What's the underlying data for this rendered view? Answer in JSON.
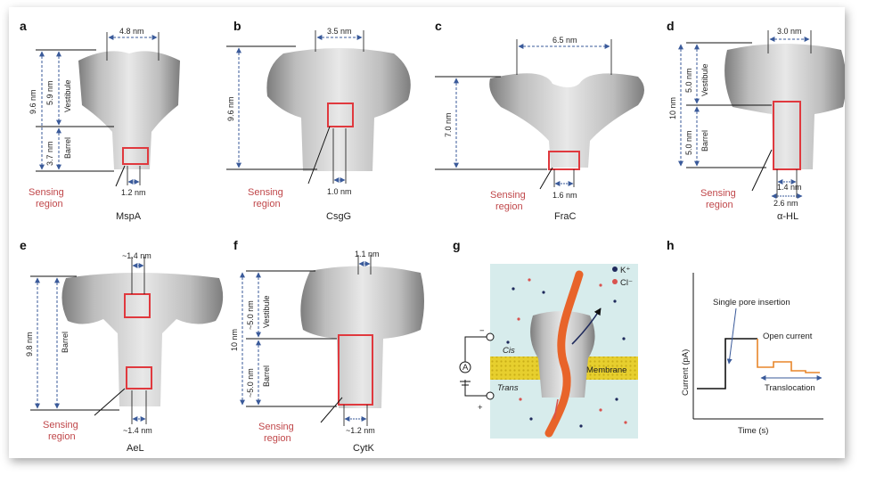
{
  "panels": {
    "a": {
      "letter": "a",
      "name": "MspA",
      "height": "9.6 nm",
      "top_width": "4.8 nm",
      "vestibule_len": "5.9 nm",
      "barrel_len": "3.7 nm",
      "vestibule": "Vestibule",
      "barrel": "Barrel",
      "constriction": "1.2 nm",
      "sensing": [
        "Sensing",
        "region"
      ]
    },
    "b": {
      "letter": "b",
      "name": "CsgG",
      "height": "9.6 nm",
      "top_width": "3.5 nm",
      "constriction": "1.0 nm",
      "sensing": [
        "Sensing",
        "region"
      ]
    },
    "c": {
      "letter": "c",
      "name": "FraC",
      "height": "7.0 nm",
      "top_width": "6.5 nm",
      "constriction": "1.6 nm",
      "sensing": [
        "Sensing",
        "region"
      ]
    },
    "d": {
      "letter": "d",
      "name": "α-HL",
      "height": "10 nm",
      "top_width": "3.0 nm",
      "vestibule_len": "5.0 nm",
      "barrel_len": "5.0 nm",
      "vestibule": "Vestibule",
      "barrel": "Barrel",
      "inner_width": "1.4 nm",
      "outer_width": "2.6 nm",
      "sensing": [
        "Sensing",
        "region"
      ]
    },
    "e": {
      "letter": "e",
      "name": "AeL",
      "height": "9.8 nm",
      "barrel": "Barrel",
      "top_width": "~1.4 nm",
      "bottom_width": "~1.4 nm",
      "sensing": [
        "Sensing",
        "region"
      ]
    },
    "f": {
      "letter": "f",
      "name": "CytK",
      "height": "10 nm",
      "top_width": "1.1 nm",
      "vestibule_len": "~5.0 nm",
      "barrel_len": "~5.0 nm",
      "vestibule": "Vestibule",
      "barrel": "Barrel",
      "bottom_width": "~1.2 nm",
      "sensing": [
        "Sensing",
        "region"
      ]
    },
    "g": {
      "letter": "g",
      "k_label": "K⁺",
      "cl_label": "Cl⁻",
      "cis": "Cis",
      "trans": "Trans",
      "membrane": "Membrane",
      "amp": "A",
      "minus": "−",
      "plus": "+"
    },
    "h": {
      "letter": "h",
      "ylabel": "Current (pA)",
      "xlabel": "Time (s)",
      "insertion": "Single pore insertion",
      "open": "Open current",
      "translocation": "Translocation"
    }
  },
  "colors": {
    "sensing": "#c0474a",
    "box": "#e0393e",
    "arrow": "#3a5a9a",
    "membrane": "#e7cf2e",
    "bath": "#d7ecec",
    "dna": "#e8642a",
    "k_ion": "#1f2a5c",
    "cl_ion": "#d9534f",
    "trace_black": "#111111",
    "trace_orange": "#e8862a"
  }
}
